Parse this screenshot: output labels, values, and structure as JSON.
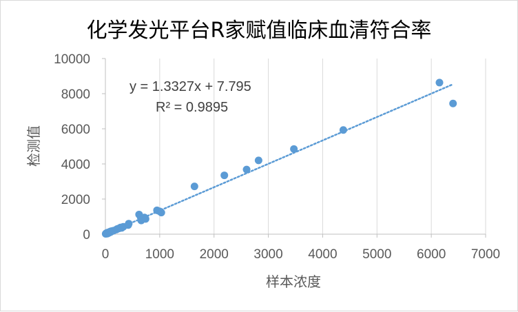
{
  "chart_data": {
    "type": "scatter",
    "title": "化学发光平台R家赋值临床血清符合率",
    "xlabel": "样本浓度",
    "ylabel": "检测值",
    "xlim": [
      0,
      7000
    ],
    "ylim": [
      0,
      10000
    ],
    "xticks": [
      0,
      1000,
      2000,
      3000,
      4000,
      5000,
      6000,
      7000
    ],
    "yticks": [
      0,
      2000,
      4000,
      6000,
      8000,
      10000
    ],
    "grid": "vertical",
    "color": "#5b9bd5",
    "trendline": {
      "type": "linear",
      "slope": 1.3327,
      "intercept": 7.795,
      "x_range": [
        0,
        6400
      ]
    },
    "equation_label": "y = 1.3327x + 7.795",
    "r2_label": "R² = 0.9895",
    "points": [
      {
        "x": 5,
        "y": 20
      },
      {
        "x": 10,
        "y": 40
      },
      {
        "x": 15,
        "y": 30
      },
      {
        "x": 20,
        "y": 60
      },
      {
        "x": 25,
        "y": 50
      },
      {
        "x": 30,
        "y": 80
      },
      {
        "x": 35,
        "y": 30
      },
      {
        "x": 40,
        "y": 70
      },
      {
        "x": 50,
        "y": 100
      },
      {
        "x": 55,
        "y": 60
      },
      {
        "x": 60,
        "y": 90
      },
      {
        "x": 70,
        "y": 120
      },
      {
        "x": 80,
        "y": 100
      },
      {
        "x": 90,
        "y": 150
      },
      {
        "x": 100,
        "y": 130
      },
      {
        "x": 110,
        "y": 170
      },
      {
        "x": 130,
        "y": 180
      },
      {
        "x": 150,
        "y": 200
      },
      {
        "x": 200,
        "y": 260
      },
      {
        "x": 220,
        "y": 300
      },
      {
        "x": 250,
        "y": 330
      },
      {
        "x": 280,
        "y": 380
      },
      {
        "x": 300,
        "y": 360
      },
      {
        "x": 330,
        "y": 420
      },
      {
        "x": 420,
        "y": 520
      },
      {
        "x": 430,
        "y": 600
      },
      {
        "x": 620,
        "y": 1120
      },
      {
        "x": 650,
        "y": 960
      },
      {
        "x": 660,
        "y": 780
      },
      {
        "x": 720,
        "y": 950
      },
      {
        "x": 740,
        "y": 870
      },
      {
        "x": 950,
        "y": 1360
      },
      {
        "x": 1000,
        "y": 1300
      },
      {
        "x": 1030,
        "y": 1230
      },
      {
        "x": 1640,
        "y": 2720
      },
      {
        "x": 2190,
        "y": 3350
      },
      {
        "x": 2600,
        "y": 3680
      },
      {
        "x": 2820,
        "y": 4200
      },
      {
        "x": 3470,
        "y": 4850
      },
      {
        "x": 4380,
        "y": 5930
      },
      {
        "x": 6150,
        "y": 8630
      },
      {
        "x": 6400,
        "y": 7440
      }
    ]
  }
}
